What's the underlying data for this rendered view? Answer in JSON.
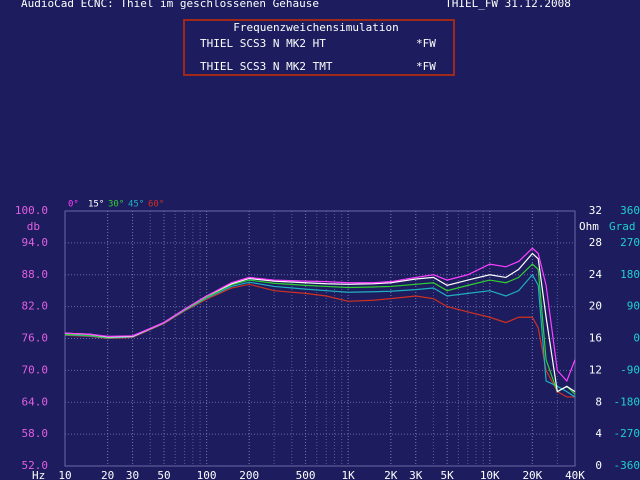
{
  "crossover_box": {
    "title": "Frequenzweichensimulation",
    "rows": [
      [
        "THIEL SCS3 N MK2 HT",
        "*FW"
      ],
      [
        "THIEL SCS3 N MK2 TMT",
        "*FW"
      ]
    ]
  },
  "chart_data": {
    "type": "line",
    "title": "AudioCad ECNC: Thiel im geschlossenen Gehäuse",
    "subtitle": "THIEL_FW 31.12.2008",
    "x_label": "Hz",
    "y_label": "db",
    "y2_label": "Ohm",
    "y3_label": "Grad",
    "x": [
      10,
      15,
      20,
      30,
      50,
      70,
      100,
      150,
      200,
      300,
      500,
      700,
      1000,
      1500,
      2000,
      3000,
      4000,
      5000,
      7000,
      10000,
      13000,
      16000,
      20000,
      22000,
      25000,
      30000,
      35000,
      40000
    ],
    "series": [
      {
        "name": "0°",
        "color": "#ff40ff",
        "values": [
          77,
          76.8,
          76.4,
          76.5,
          79,
          81.5,
          84,
          86.5,
          87.5,
          87,
          86.8,
          86.7,
          86.5,
          86.5,
          86.7,
          87.5,
          88,
          87,
          88,
          90,
          89.5,
          90.5,
          93,
          92,
          86,
          70,
          68,
          72
        ]
      },
      {
        "name": "15°",
        "color": "#ffffff",
        "values": [
          77,
          76.8,
          76.3,
          76.4,
          79,
          81.5,
          84,
          86.3,
          87.3,
          86.8,
          86.5,
          86.3,
          86.2,
          86.3,
          86.5,
          87.2,
          87.5,
          86,
          87,
          88,
          87.5,
          89,
          92,
          91,
          80,
          66,
          67,
          66
        ]
      },
      {
        "name": "30°",
        "color": "#30d030",
        "values": [
          76.8,
          76.6,
          76.2,
          76.4,
          79,
          81.4,
          83.8,
          86.1,
          87,
          86.4,
          86,
          85.8,
          85.6,
          85.7,
          85.8,
          86.2,
          86.5,
          85,
          86,
          87,
          86.5,
          87.5,
          90,
          89,
          72,
          66,
          67,
          65.5
        ]
      },
      {
        "name": "45°",
        "color": "#20b0c0",
        "values": [
          76.7,
          76.5,
          76.1,
          76.3,
          78.9,
          81.3,
          83.6,
          85.8,
          86.6,
          85.8,
          85.3,
          85,
          84.7,
          84.8,
          84.9,
          85.2,
          85.5,
          84,
          84.5,
          85,
          84,
          85,
          88,
          86,
          68,
          67,
          66,
          65
        ]
      },
      {
        "name": "60°",
        "color": "#d03020",
        "values": [
          76.6,
          76.4,
          76,
          76.2,
          78.8,
          81.2,
          83.4,
          85.5,
          86.2,
          85,
          84.5,
          84,
          83,
          83.2,
          83.5,
          84,
          83.5,
          82,
          81,
          80,
          79,
          80,
          80,
          78,
          70,
          66,
          65,
          65
        ]
      }
    ],
    "xscale": "log",
    "xlim": [
      10,
      40000
    ],
    "xticks": [
      10,
      20,
      30,
      50,
      100,
      200,
      500,
      {
        "value": 1000,
        "label": "1K"
      },
      {
        "value": 2000,
        "label": "2K"
      },
      {
        "value": 3000,
        "label": "3K"
      },
      {
        "value": 5000,
        "label": "5K"
      },
      {
        "value": 10000,
        "label": "10K"
      },
      {
        "value": 20000,
        "label": "20K"
      },
      {
        "value": 40000,
        "label": "40K"
      }
    ],
    "ylim": [
      52,
      100
    ],
    "yticks": [
      {
        "value": 100,
        "label": "100.0"
      },
      {
        "value": 94,
        "label": "94.0"
      },
      {
        "value": 88,
        "label": "88.0"
      },
      {
        "value": 82,
        "label": "82.0"
      },
      {
        "value": 76,
        "label": "76.0"
      },
      {
        "value": 70,
        "label": "70.0"
      },
      {
        "value": 64,
        "label": "64.0"
      },
      {
        "value": 58,
        "label": "58.0"
      },
      {
        "value": 52,
        "label": "52.0"
      }
    ],
    "y2lim": [
      0,
      32
    ],
    "y2ticks": [
      32,
      28,
      24,
      20,
      16,
      12,
      8,
      4,
      0
    ],
    "y3lim": [
      -360,
      360
    ],
    "y3ticks": [
      360,
      270,
      180,
      90,
      0,
      -90,
      -180,
      -270,
      -360
    ],
    "grid": true
  }
}
